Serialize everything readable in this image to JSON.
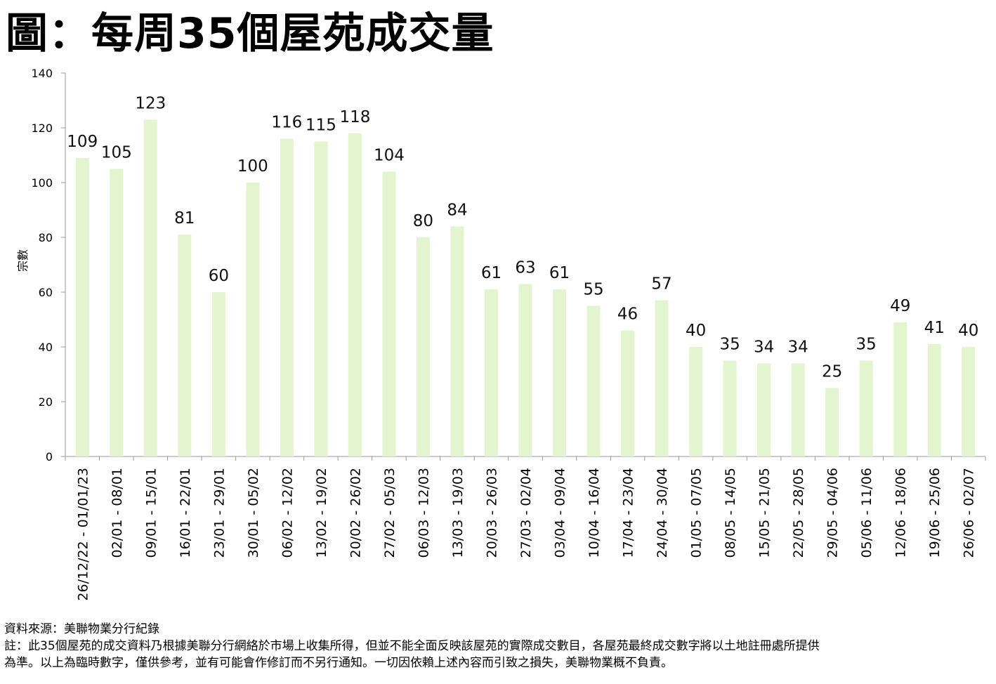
{
  "title": "圖：每周35個屋苑成交量",
  "chart_data": {
    "type": "bar",
    "title": "圖：每周35個屋苑成交量",
    "xlabel": "",
    "ylabel": "宗數",
    "ylim": [
      0,
      140
    ],
    "yticks": [
      0,
      20,
      40,
      60,
      80,
      100,
      120,
      140
    ],
    "grid": false,
    "bar_color": "#e2f5cf",
    "categories": [
      "26/12/22 - 01/01/23",
      "02/01 - 08/01",
      "09/01 - 15/01",
      "16/01 - 22/01",
      "23/01 - 29/01",
      "30/01 - 05/02",
      "06/02 - 12/02",
      "13/02 - 19/02",
      "20/02 - 26/02",
      "27/02 - 05/03",
      "06/03 - 12/03",
      "13/03 - 19/03",
      "20/03 - 26/03",
      "27/03 - 02/04",
      "03/04 - 09/04",
      "10/04 - 16/04",
      "17/04 - 23/04",
      "24/04 - 30/04",
      "01/05 - 07/05",
      "08/05 - 14/05",
      "15/05 - 21/05",
      "22/05 - 28/05",
      "29/05 - 04/06",
      "05/06 - 11/06",
      "12/06 - 18/06",
      "19/06 - 25/06",
      "26/06 - 02/07"
    ],
    "values": [
      109,
      105,
      123,
      81,
      60,
      100,
      116,
      115,
      118,
      104,
      80,
      84,
      61,
      63,
      61,
      55,
      46,
      57,
      40,
      35,
      34,
      34,
      25,
      35,
      49,
      41,
      40
    ]
  },
  "footnotes": {
    "source": "資料來源：美聯物業分行紀錄",
    "note_line1": "註：此35個屋苑的成交資料乃根據美聯分行網絡於市場上收集所得，但並不能全面反映該屋苑的實際成交數目，各屋苑最終成交數字將以土地註冊處所提供",
    "note_line2": "為準。以上為臨時數字，僅供參考，並有可能會作修訂而不另行通知。一切因依賴上述內容而引致之損失，美聯物業概不負責。"
  }
}
